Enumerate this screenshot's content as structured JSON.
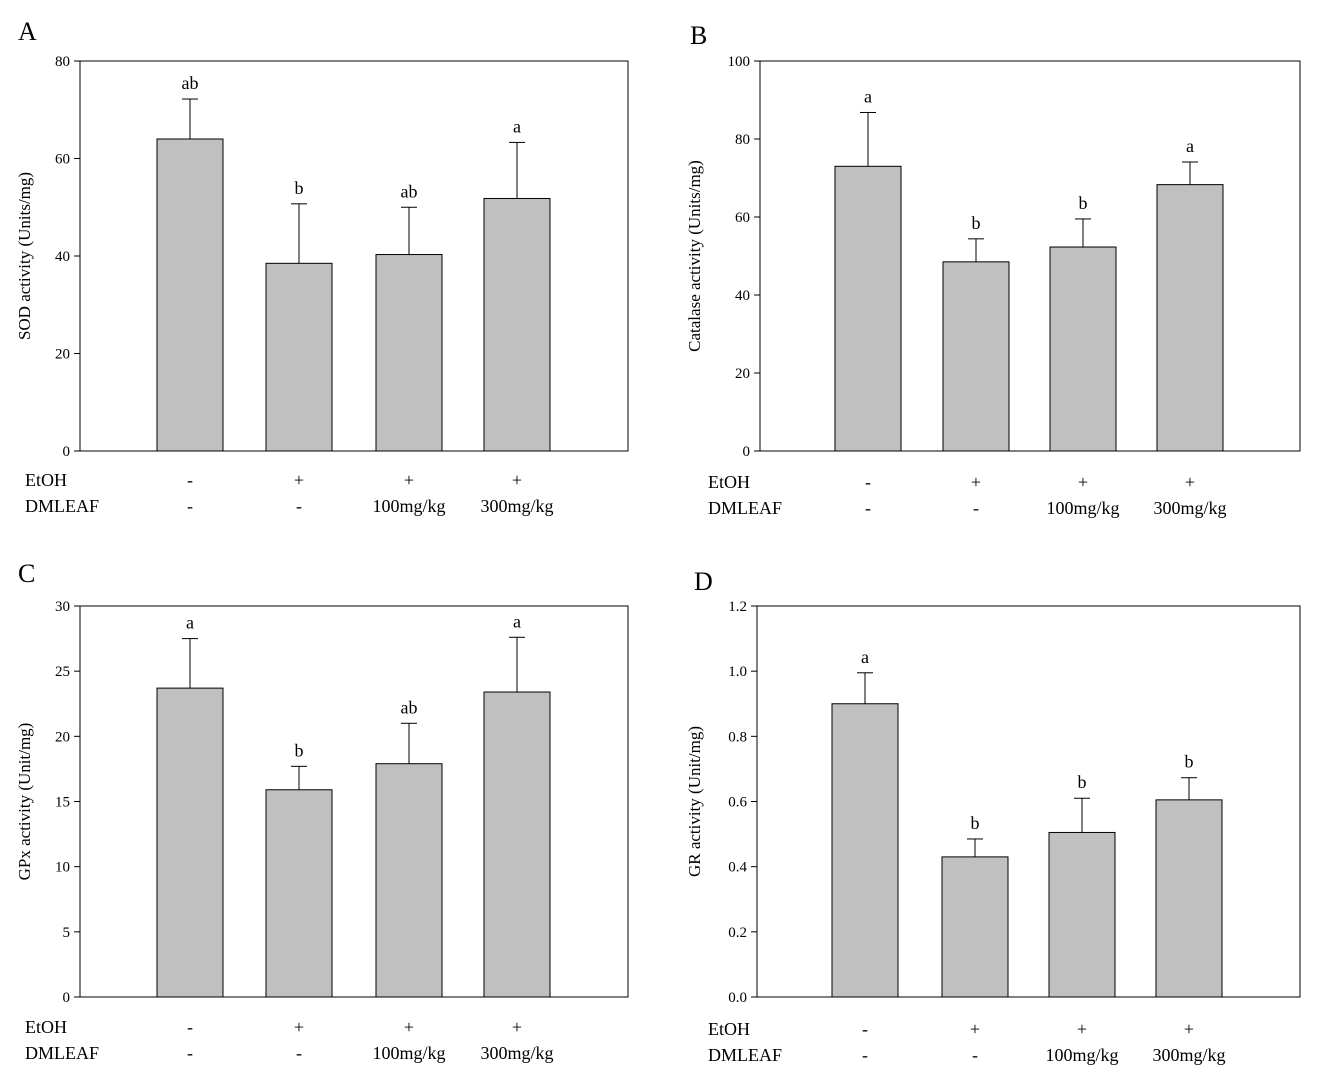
{
  "figure": {
    "row_labels": [
      "EtOH",
      "DMLEAF"
    ],
    "groups": [
      {
        "etoh": "-",
        "dmleaf": "-"
      },
      {
        "etoh": "+",
        "dmleaf": "-"
      },
      {
        "etoh": "+",
        "dmleaf": "100mg/kg"
      },
      {
        "etoh": "+",
        "dmleaf": "300mg/kg"
      }
    ]
  },
  "colors": {
    "bar_fill": "#c0c0c0",
    "bar_stroke": "#000000",
    "axis": "#000000"
  },
  "chart_data": [
    {
      "panel_label": "A",
      "type": "bar",
      "ylabel": "SOD activity (Units/mg)",
      "ylim": [
        0,
        80
      ],
      "yticks": [
        "0",
        "20",
        "40",
        "60",
        "80"
      ],
      "values": [
        64,
        38.5,
        40.3,
        51.8
      ],
      "errors": [
        8.2,
        12.2,
        9.7,
        11.5
      ],
      "annotations": [
        "ab",
        "b",
        "ab",
        "a"
      ],
      "grid": false
    },
    {
      "panel_label": "B",
      "type": "bar",
      "ylabel": "Catalase activity (Units/mg)",
      "ylim": [
        0,
        100
      ],
      "yticks": [
        "0",
        "20",
        "40",
        "60",
        "80",
        "100"
      ],
      "values": [
        73,
        48.5,
        52.3,
        68.3
      ],
      "errors": [
        13.8,
        5.9,
        7.2,
        5.8
      ],
      "annotations": [
        "a",
        "b",
        "b",
        "a"
      ],
      "grid": false
    },
    {
      "panel_label": "C",
      "type": "bar",
      "ylabel": "GPx activity (Unit/mg)",
      "ylim": [
        0,
        30
      ],
      "yticks": [
        "0",
        "5",
        "10",
        "15",
        "20",
        "25",
        "30"
      ],
      "values": [
        23.7,
        15.9,
        17.9,
        23.4
      ],
      "errors": [
        3.8,
        1.8,
        3.1,
        4.2
      ],
      "annotations": [
        "a",
        "b",
        "ab",
        "a"
      ],
      "grid": false
    },
    {
      "panel_label": "D",
      "type": "bar",
      "ylabel": "GR activity (Unit/mg)",
      "ylim": [
        0,
        1.2
      ],
      "yticks": [
        "0.0",
        "0.2",
        "0.4",
        "0.6",
        "0.8",
        "1.0",
        "1.2"
      ],
      "values": [
        0.9,
        0.43,
        0.505,
        0.605
      ],
      "errors": [
        0.095,
        0.055,
        0.105,
        0.068
      ],
      "annotations": [
        "a",
        "b",
        "b",
        "b"
      ],
      "grid": false
    }
  ]
}
